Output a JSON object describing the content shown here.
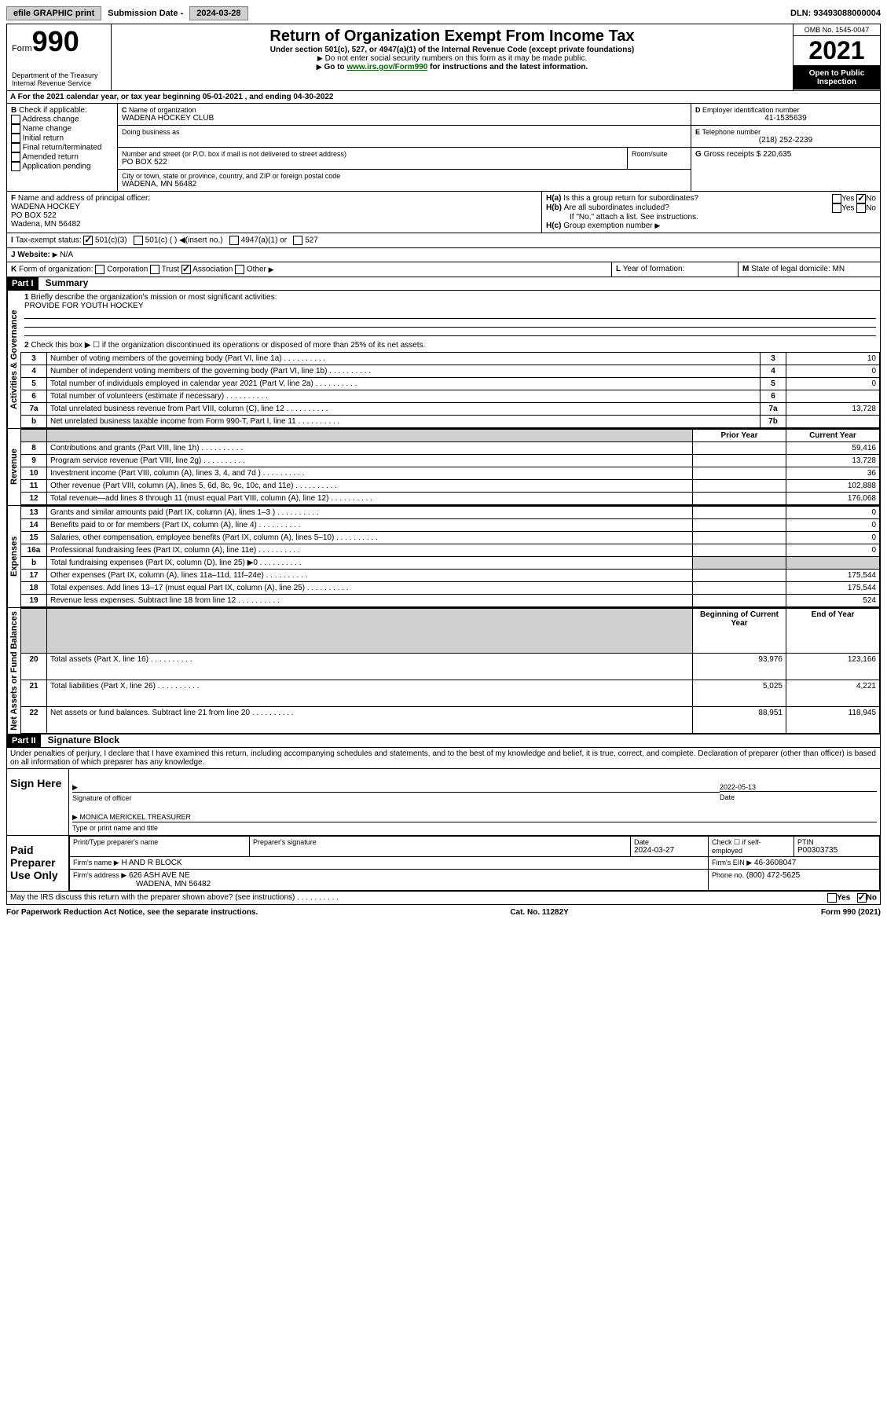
{
  "top": {
    "efile": "efile GRAPHIC print",
    "submission_label": "Submission Date - ",
    "submission_date": "2024-03-28",
    "dln_label": "DLN: ",
    "dln": "93493088000004"
  },
  "header": {
    "form_word": "Form",
    "form_no": "990",
    "dept": "Department of the Treasury Internal Revenue Service",
    "title": "Return of Organization Exempt From Income Tax",
    "sub": "Under section 501(c), 527, or 4947(a)(1) of the Internal Revenue Code (except private foundations)",
    "instr1": "Do not enter social security numbers on this form as it may be made public.",
    "instr2a": "Go to ",
    "instr2b": "www.irs.gov/Form990",
    "instr2c": " for instructions and the latest information.",
    "omb": "OMB No. 1545-0047",
    "year": "2021",
    "open": "Open to Public Inspection"
  },
  "a": {
    "line": "For the 2021 calendar year, or tax year beginning 05-01-2021  , and ending 04-30-2022"
  },
  "b": {
    "label": "Check if applicable:",
    "opts": [
      "Address change",
      "Name change",
      "Initial return",
      "Final return/terminated",
      "Amended return",
      "Application pending"
    ]
  },
  "c": {
    "name_label": "Name of organization",
    "name": "WADENA HOCKEY CLUB",
    "dba_label": "Doing business as",
    "street_label": "Number and street (or P.O. box if mail is not delivered to street address)",
    "room_label": "Room/suite",
    "street": "PO BOX 522",
    "city_label": "City or town, state or province, country, and ZIP or foreign postal code",
    "city": "WADENA, MN  56482"
  },
  "d": {
    "label": "Employer identification number",
    "value": "41-1535639"
  },
  "e": {
    "label": "Telephone number",
    "value": "(218) 252-2239"
  },
  "g": {
    "label": "Gross receipts $",
    "value": "220,635"
  },
  "f": {
    "label": "Name and address of principal officer:",
    "name": "WADENA HOCKEY",
    "addr1": "PO BOX 522",
    "addr2": "Wadena, MN  56482"
  },
  "h": {
    "a": "Is this a group return for subordinates?",
    "b": "Are all subordinates included?",
    "b_note": "If \"No,\" attach a list. See instructions.",
    "c": "Group exemption number"
  },
  "i": {
    "label": "Tax-exempt status:",
    "o1": "501(c)(3)",
    "o2": "501(c) (  )",
    "ins": "(insert no.)",
    "o3": "4947(a)(1) or",
    "o4": "527"
  },
  "j": {
    "label": "Website:",
    "value": "N/A"
  },
  "k": {
    "label": "Form of organization:",
    "o1": "Corporation",
    "o2": "Trust",
    "o3": "Association",
    "o4": "Other"
  },
  "l": {
    "label": "Year of formation:"
  },
  "m": {
    "label": "State of legal domicile:",
    "value": "MN"
  },
  "part1": {
    "hdr": "Part I",
    "title": "Summary",
    "q1": "Briefly describe the organization's mission or most significant activities:",
    "mission": "PROVIDE FOR YOUTH HOCKEY",
    "q2": "Check this box ▶ ☐ if the organization discontinued its operations or disposed of more than 25% of its net assets.",
    "rows_gov": [
      {
        "n": "3",
        "t": "Number of voting members of the governing body (Part VI, line 1a)",
        "box": "3",
        "v": "10"
      },
      {
        "n": "4",
        "t": "Number of independent voting members of the governing body (Part VI, line 1b)",
        "box": "4",
        "v": "0"
      },
      {
        "n": "5",
        "t": "Total number of individuals employed in calendar year 2021 (Part V, line 2a)",
        "box": "5",
        "v": "0"
      },
      {
        "n": "6",
        "t": "Total number of volunteers (estimate if necessary)",
        "box": "6",
        "v": ""
      },
      {
        "n": "7a",
        "t": "Total unrelated business revenue from Part VIII, column (C), line 12",
        "box": "7a",
        "v": "13,728"
      },
      {
        "n": "b",
        "t": "Net unrelated business taxable income from Form 990-T, Part I, line 11",
        "box": "7b",
        "v": ""
      }
    ],
    "col_prior": "Prior Year",
    "col_curr": "Current Year",
    "rows_rev": [
      {
        "n": "8",
        "t": "Contributions and grants (Part VIII, line 1h)",
        "p": "",
        "c": "59,416"
      },
      {
        "n": "9",
        "t": "Program service revenue (Part VIII, line 2g)",
        "p": "",
        "c": "13,728"
      },
      {
        "n": "10",
        "t": "Investment income (Part VIII, column (A), lines 3, 4, and 7d )",
        "p": "",
        "c": "36"
      },
      {
        "n": "11",
        "t": "Other revenue (Part VIII, column (A), lines 5, 6d, 8c, 9c, 10c, and 11e)",
        "p": "",
        "c": "102,888"
      },
      {
        "n": "12",
        "t": "Total revenue—add lines 8 through 11 (must equal Part VIII, column (A), line 12)",
        "p": "",
        "c": "176,068"
      }
    ],
    "rows_exp": [
      {
        "n": "13",
        "t": "Grants and similar amounts paid (Part IX, column (A), lines 1–3 )",
        "p": "",
        "c": "0"
      },
      {
        "n": "14",
        "t": "Benefits paid to or for members (Part IX, column (A), line 4)",
        "p": "",
        "c": "0"
      },
      {
        "n": "15",
        "t": "Salaries, other compensation, employee benefits (Part IX, column (A), lines 5–10)",
        "p": "",
        "c": "0"
      },
      {
        "n": "16a",
        "t": "Professional fundraising fees (Part IX, column (A), line 11e)",
        "p": "",
        "c": "0"
      },
      {
        "n": "b",
        "t": "Total fundraising expenses (Part IX, column (D), line 25) ▶0",
        "p": "shade",
        "c": "shade"
      },
      {
        "n": "17",
        "t": "Other expenses (Part IX, column (A), lines 11a–11d, 11f–24e)",
        "p": "",
        "c": "175,544"
      },
      {
        "n": "18",
        "t": "Total expenses. Add lines 13–17 (must equal Part IX, column (A), line 25)",
        "p": "",
        "c": "175,544"
      },
      {
        "n": "19",
        "t": "Revenue less expenses. Subtract line 18 from line 12",
        "p": "",
        "c": "524"
      }
    ],
    "col_beg": "Beginning of Current Year",
    "col_end": "End of Year",
    "rows_net": [
      {
        "n": "20",
        "t": "Total assets (Part X, line 16)",
        "p": "93,976",
        "c": "123,166"
      },
      {
        "n": "21",
        "t": "Total liabilities (Part X, line 26)",
        "p": "5,025",
        "c": "4,221"
      },
      {
        "n": "22",
        "t": "Net assets or fund balances. Subtract line 21 from line 20",
        "p": "88,951",
        "c": "118,945"
      }
    ],
    "vlabels": {
      "gov": "Activities & Governance",
      "rev": "Revenue",
      "exp": "Expenses",
      "net": "Net Assets or Fund Balances"
    }
  },
  "part2": {
    "hdr": "Part II",
    "title": "Signature Block",
    "decl": "Under penalties of perjury, I declare that I have examined this return, including accompanying schedules and statements, and to the best of my knowledge and belief, it is true, correct, and complete. Declaration of preparer (other than officer) is based on all information of which preparer has any knowledge.",
    "sign_here": "Sign Here",
    "sig_officer": "Signature of officer",
    "date_label": "Date",
    "date": "2022-05-13",
    "officer_name": "MONICA MERICKEL TREASURER",
    "name_title_label": "Type or print name and title",
    "paid": "Paid Preparer Use Only",
    "prep_name_label": "Print/Type preparer's name",
    "prep_sig_label": "Preparer's signature",
    "prep_date_label": "Date",
    "prep_date": "2024-03-27",
    "check_se": "Check ☐ if self-employed",
    "ptin_label": "PTIN",
    "ptin": "P00303735",
    "firm_name_label": "Firm's name ▶",
    "firm_name": "H AND R BLOCK",
    "firm_ein_label": "Firm's EIN ▶",
    "firm_ein": "46-3608047",
    "firm_addr_label": "Firm's address ▶",
    "firm_addr": "626 ASH AVE NE",
    "firm_city": "WADENA, MN  56482",
    "phone_label": "Phone no.",
    "phone": "(800) 472-5625",
    "irs_q": "May the IRS discuss this return with the preparer shown above? (see instructions)"
  },
  "footer": {
    "left": "For Paperwork Reduction Act Notice, see the separate instructions.",
    "mid": "Cat. No. 11282Y",
    "right": "Form 990 (2021)"
  },
  "yn": {
    "yes": "Yes",
    "no": "No"
  }
}
